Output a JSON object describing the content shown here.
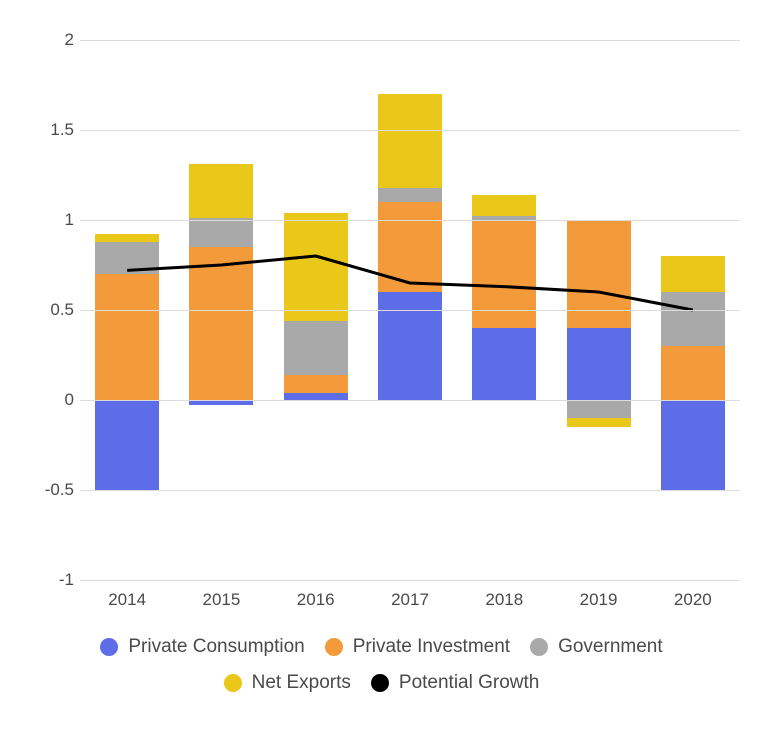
{
  "chart": {
    "type": "stacked-bar-with-line",
    "background_color": "#ffffff",
    "grid_color": "#dcdcdc",
    "text_color": "#4a4a4a",
    "tick_fontsize": 17,
    "legend_fontsize": 19,
    "ylim": [
      -1,
      2
    ],
    "yticks": [
      -1,
      -0.5,
      0,
      0.5,
      1,
      1.5,
      2
    ],
    "categories": [
      "2014",
      "2015",
      "2016",
      "2017",
      "2018",
      "2019",
      "2020"
    ],
    "bar_width": 0.68,
    "series": [
      {
        "key": "private_consumption",
        "label": "Private Consumption",
        "color": "#5d6de7",
        "values": [
          -0.5,
          -0.03,
          0.04,
          0.6,
          0.4,
          0.4,
          -0.5
        ]
      },
      {
        "key": "private_investment",
        "label": "Private Investment",
        "color": "#f39b3b",
        "values": [
          0.7,
          0.85,
          0.1,
          0.5,
          0.6,
          0.6,
          0.3
        ]
      },
      {
        "key": "government",
        "label": "Government",
        "color": "#a9a9a9",
        "values": [
          0.18,
          0.16,
          0.3,
          0.08,
          0.02,
          -0.1,
          0.3
        ]
      },
      {
        "key": "net_exports",
        "label": "Net Exports",
        "color": "#eac819",
        "values": [
          0.04,
          0.3,
          0.6,
          0.52,
          0.12,
          -0.05,
          0.2
        ]
      }
    ],
    "line_series": {
      "key": "potential_growth",
      "label": "Potential Growth",
      "color": "#000000",
      "line_width": 3,
      "values": [
        0.72,
        0.75,
        0.8,
        0.65,
        0.63,
        0.6,
        0.5
      ]
    },
    "legend_rows": [
      [
        "private_consumption",
        "private_investment",
        "government"
      ],
      [
        "net_exports",
        "potential_growth"
      ]
    ]
  }
}
